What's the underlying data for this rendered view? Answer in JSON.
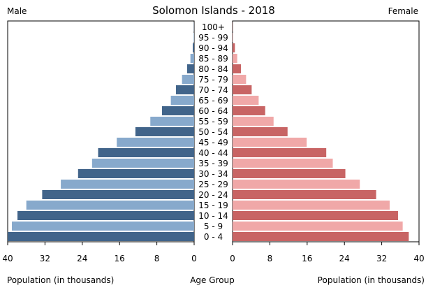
{
  "chart_data": {
    "type": "bar",
    "title": "Solomon Islands - 2018",
    "left_label": "Male",
    "right_label": "Female",
    "xlabel_left": "Population (in thousands)",
    "xlabel_center": "Age Group",
    "xlabel_right": "Population (in thousands)",
    "xlim": [
      0,
      40
    ],
    "xticks": [
      0,
      8,
      16,
      24,
      32,
      40
    ],
    "categories": [
      "100+",
      "95 - 99",
      "90 - 94",
      "85 - 89",
      "80 - 84",
      "75 - 79",
      "70 - 74",
      "65 - 69",
      "60 - 64",
      "55 - 59",
      "50 - 54",
      "45 - 49",
      "40 - 44",
      "35 - 39",
      "30 - 34",
      "25 - 29",
      "20 - 24",
      "15 - 19",
      "10 - 14",
      "5 - 9",
      "0 - 4"
    ],
    "series": [
      {
        "name": "Male",
        "colors": [
          "#41648a",
          "#87a9cc"
        ],
        "values": [
          0.05,
          0.1,
          0.3,
          0.8,
          1.5,
          2.6,
          3.9,
          5.0,
          6.9,
          9.4,
          12.6,
          16.6,
          20.6,
          21.9,
          24.9,
          28.6,
          32.6,
          36.0,
          37.9,
          39.1,
          40.0
        ]
      },
      {
        "name": "Female",
        "colors": [
          "#c86464",
          "#f0a8a8"
        ],
        "values": [
          0.05,
          0.1,
          0.5,
          1.0,
          1.8,
          2.9,
          4.1,
          5.6,
          7.0,
          8.8,
          11.8,
          15.9,
          20.1,
          21.5,
          24.2,
          27.3,
          30.8,
          33.7,
          35.5,
          36.5,
          37.8
        ]
      }
    ],
    "grid": false
  }
}
